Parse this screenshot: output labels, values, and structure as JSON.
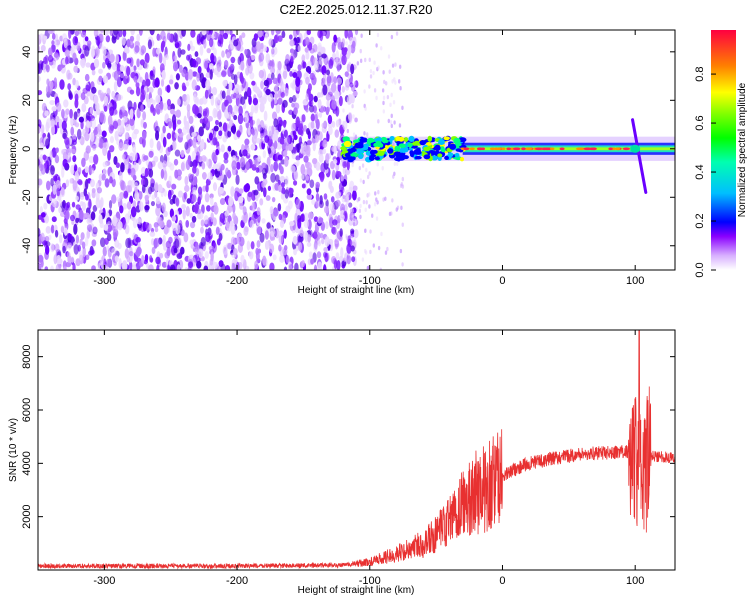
{
  "title": "C2E2.2025.012.11.37.R20",
  "chart_data": [
    {
      "type": "heatmap",
      "name": "spectrogram",
      "xlabel": "Height of straight line (km)",
      "ylabel": "Frequency (Hz)",
      "xlim": [
        -350,
        130
      ],
      "ylim": [
        -50,
        49
      ],
      "xticks": [
        -300,
        -200,
        -100,
        0,
        100
      ],
      "yticks": [
        -40,
        -20,
        0,
        20,
        40
      ],
      "colorbar": {
        "label": "Normalized spectral amplitude",
        "range": [
          0,
          0.98
        ],
        "ticks": [
          0.0,
          0.2,
          0.4,
          0.6,
          0.8
        ],
        "tick_labels": [
          "0.0",
          "0.2",
          "0.4",
          "0.6",
          "0.8"
        ],
        "colormap": [
          "#ffffff",
          "#d8b0ff",
          "#6a00ff",
          "#0000ff",
          "#00bfff",
          "#00ff80",
          "#80ff00",
          "#ffff00",
          "#ff8000",
          "#ff0040"
        ]
      },
      "features": {
        "noise_region_x": [
          -350,
          -120
        ],
        "transition_x": [
          -120,
          -30
        ],
        "carrier_x": [
          -30,
          130
        ],
        "carrier_freq": 0,
        "meteor_head_x": 100
      }
    },
    {
      "type": "line",
      "name": "snr",
      "xlabel": "Height of straight line (km)",
      "ylabel": "SNR (10 * v/v)",
      "xlim": [
        -350,
        130
      ],
      "ylim": [
        0,
        9000
      ],
      "xticks": [
        -300,
        -200,
        -100,
        0,
        100
      ],
      "yticks": [
        2000,
        4000,
        6000,
        8000
      ],
      "color": "#e83030",
      "series": [
        {
          "envelope": [
            [
              -350,
              150
            ],
            [
              -200,
              150
            ],
            [
              -120,
              180
            ],
            [
              -100,
              300
            ],
            [
              -80,
              600
            ],
            [
              -60,
              1000
            ],
            [
              -50,
              1300
            ],
            [
              -40,
              1800
            ],
            [
              -30,
              2500
            ],
            [
              -20,
              2900
            ],
            [
              -10,
              3200
            ],
            [
              0,
              3500
            ],
            [
              10,
              3800
            ],
            [
              20,
              4000
            ],
            [
              40,
              4200
            ],
            [
              60,
              4350
            ],
            [
              80,
              4400
            ],
            [
              95,
              4450
            ],
            [
              100,
              4200
            ],
            [
              105,
              3000
            ],
            [
              110,
              4300
            ],
            [
              130,
              4200
            ]
          ],
          "peak": [
            103,
            9000
          ]
        }
      ]
    }
  ]
}
